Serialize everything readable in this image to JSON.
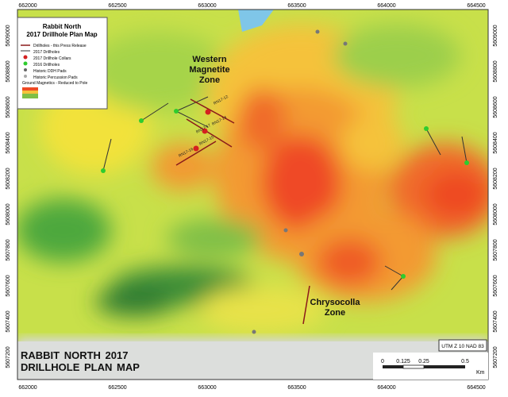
{
  "map": {
    "legend": {
      "title": "Rabbit North 2017 Drillhole Plan Map",
      "items": [
        "Drillholes - this Press Release",
        "2017 Drillholes",
        "2017 Drillhole Collars",
        "2016 Drillholes",
        "Historic DDH Pads",
        "Historic Percussion Pads",
        "Ground Magnetics - Reduced to Pole"
      ]
    },
    "easting_labels": [
      "662000",
      "662500",
      "663000",
      "663500",
      "664000",
      "664500"
    ],
    "northing_labels": [
      "5609000",
      "5608800",
      "5608600",
      "5608400",
      "5608200",
      "5608000",
      "5607800",
      "5607600",
      "5607400",
      "5607200"
    ],
    "zones": [
      "Western Magnetite Zone",
      "Chrysocolla Zone"
    ],
    "drillholes": [
      "RN17-12",
      "RN17-14",
      "RN17-15",
      "RN17-16",
      "RN17-17"
    ],
    "footer_title": "RABBIT NORTH 2017 DRILLHOLE PLAN MAP",
    "projection": "UTM Z 10 NAD 83",
    "scale": {
      "ticks": [
        "0",
        "0.125",
        "0.25",
        "0.5"
      ],
      "unit": "Km"
    }
  }
}
